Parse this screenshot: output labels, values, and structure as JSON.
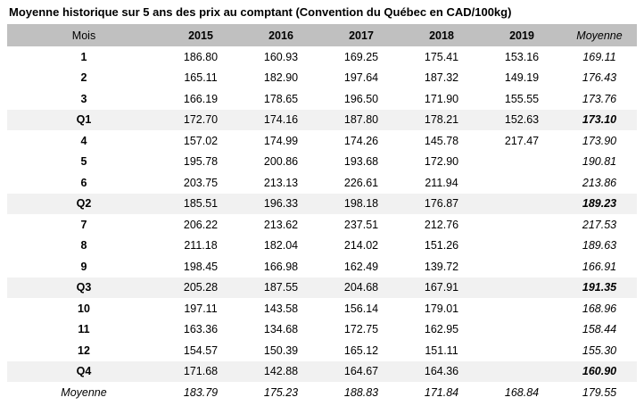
{
  "title": "Moyenne historique sur 5 ans des prix au comptant (Convention du Québec en CAD/100kg)",
  "table": {
    "columns": [
      "Mois",
      "2015",
      "2016",
      "2017",
      "2018",
      "2019",
      "Moyenne"
    ],
    "rows": [
      {
        "label": "1",
        "style": "month",
        "cells": [
          "186.80",
          "160.93",
          "169.25",
          "175.41",
          "153.16",
          "169.11"
        ]
      },
      {
        "label": "2",
        "style": "month",
        "cells": [
          "165.11",
          "182.90",
          "197.64",
          "187.32",
          "149.19",
          "176.43"
        ]
      },
      {
        "label": "3",
        "style": "month",
        "cells": [
          "166.19",
          "178.65",
          "196.50",
          "171.90",
          "155.55",
          "173.76"
        ]
      },
      {
        "label": "Q1",
        "style": "quarter",
        "cells": [
          "172.70",
          "174.16",
          "187.80",
          "178.21",
          "152.63",
          "173.10"
        ]
      },
      {
        "label": "4",
        "style": "month",
        "cells": [
          "157.02",
          "174.99",
          "174.26",
          "145.78",
          "217.47",
          "173.90"
        ]
      },
      {
        "label": "5",
        "style": "month",
        "cells": [
          "195.78",
          "200.86",
          "193.68",
          "172.90",
          "",
          "190.81"
        ]
      },
      {
        "label": "6",
        "style": "month",
        "cells": [
          "203.75",
          "213.13",
          "226.61",
          "211.94",
          "",
          "213.86"
        ]
      },
      {
        "label": "Q2",
        "style": "quarter",
        "cells": [
          "185.51",
          "196.33",
          "198.18",
          "176.87",
          "",
          "189.23"
        ]
      },
      {
        "label": "7",
        "style": "month",
        "cells": [
          "206.22",
          "213.62",
          "237.51",
          "212.76",
          "",
          "217.53"
        ]
      },
      {
        "label": "8",
        "style": "month",
        "cells": [
          "211.18",
          "182.04",
          "214.02",
          "151.26",
          "",
          "189.63"
        ]
      },
      {
        "label": "9",
        "style": "month",
        "cells": [
          "198.45",
          "166.98",
          "162.49",
          "139.72",
          "",
          "166.91"
        ]
      },
      {
        "label": "Q3",
        "style": "quarter",
        "cells": [
          "205.28",
          "187.55",
          "204.68",
          "167.91",
          "",
          "191.35"
        ]
      },
      {
        "label": "10",
        "style": "month",
        "cells": [
          "197.11",
          "143.58",
          "156.14",
          "179.01",
          "",
          "168.96"
        ]
      },
      {
        "label": "11",
        "style": "month",
        "cells": [
          "163.36",
          "134.68",
          "172.75",
          "162.95",
          "",
          "158.44"
        ]
      },
      {
        "label": "12",
        "style": "month",
        "cells": [
          "154.57",
          "150.39",
          "165.12",
          "151.11",
          "",
          "155.30"
        ]
      },
      {
        "label": "Q4",
        "style": "quarter",
        "cells": [
          "171.68",
          "142.88",
          "164.67",
          "164.36",
          "",
          "160.90"
        ]
      },
      {
        "label": "Moyenne",
        "style": "average",
        "cells": [
          "183.79",
          "175.23",
          "188.83",
          "171.84",
          "168.84",
          "179.55"
        ]
      }
    ]
  },
  "colors": {
    "header_bg": "#c0c0c0",
    "quarter_row_bg": "#f1f1f1",
    "text": "#000000"
  }
}
